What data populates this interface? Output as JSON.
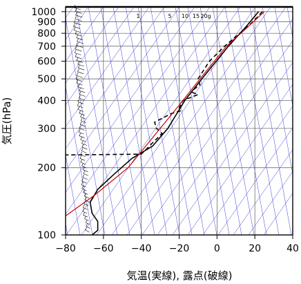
{
  "chart_data": {
    "type": "line",
    "xlabel": "気温(実線), 露点(破線)",
    "ylabel": "気圧(hPa)",
    "xlim": [
      -80,
      40
    ],
    "ylim": [
      1050,
      100
    ],
    "y_scale": "log",
    "x_ticks": [
      -80,
      -60,
      -40,
      -20,
      0,
      20,
      40
    ],
    "y_ticks": [
      100,
      200,
      300,
      400,
      500,
      600,
      700,
      800,
      900,
      1000
    ],
    "mixing_ratio_labels": [
      {
        "text": "1",
        "value": 1
      },
      {
        "text": "5",
        "value": 5
      },
      {
        "text": "10",
        "value": 10
      },
      {
        "text": "15",
        "value": 15
      },
      {
        "text": "20g",
        "value": 20
      }
    ],
    "series": [
      {
        "style": "solid",
        "color": "#000000",
        "points": [
          [
            22,
            1000
          ],
          [
            15,
            850
          ],
          [
            6,
            700
          ],
          [
            -8,
            500
          ],
          [
            -17,
            400
          ],
          [
            -26,
            300
          ],
          [
            -34,
            250
          ],
          [
            -45,
            220
          ],
          [
            -55,
            185
          ],
          [
            -63,
            160
          ],
          [
            -67,
            140
          ],
          [
            -66,
            125
          ],
          [
            -63,
            115
          ],
          [
            -63,
            105
          ],
          [
            -66,
            100
          ]
        ]
      },
      {
        "style": "dashed",
        "color": "#000000",
        "points": [
          [
            24,
            1000
          ],
          [
            19,
            900
          ],
          [
            12,
            800
          ],
          [
            4,
            700
          ],
          [
            -4,
            600
          ],
          [
            -10,
            500
          ],
          [
            -9,
            470
          ],
          [
            -12,
            450
          ],
          [
            -13,
            435
          ],
          [
            -10,
            425
          ],
          [
            -18,
            400
          ],
          [
            -20,
            370
          ],
          [
            -19,
            360
          ],
          [
            -24,
            350
          ],
          [
            -33,
            320
          ],
          [
            -32,
            300
          ],
          [
            -29,
            285
          ],
          [
            -40,
            230
          ],
          [
            -82,
            228
          ]
        ]
      },
      {
        "style": "solid",
        "color": "#cc0000",
        "points": [
          [
            25,
            1000
          ],
          [
            16,
            850
          ],
          [
            5,
            700
          ],
          [
            -9,
            500
          ],
          [
            -18,
            400
          ],
          [
            -30,
            300
          ],
          [
            -47,
            200
          ],
          [
            -65,
            150
          ],
          [
            -81,
            120
          ]
        ]
      }
    ],
    "wind_profile": "wind barbs along the left side"
  }
}
